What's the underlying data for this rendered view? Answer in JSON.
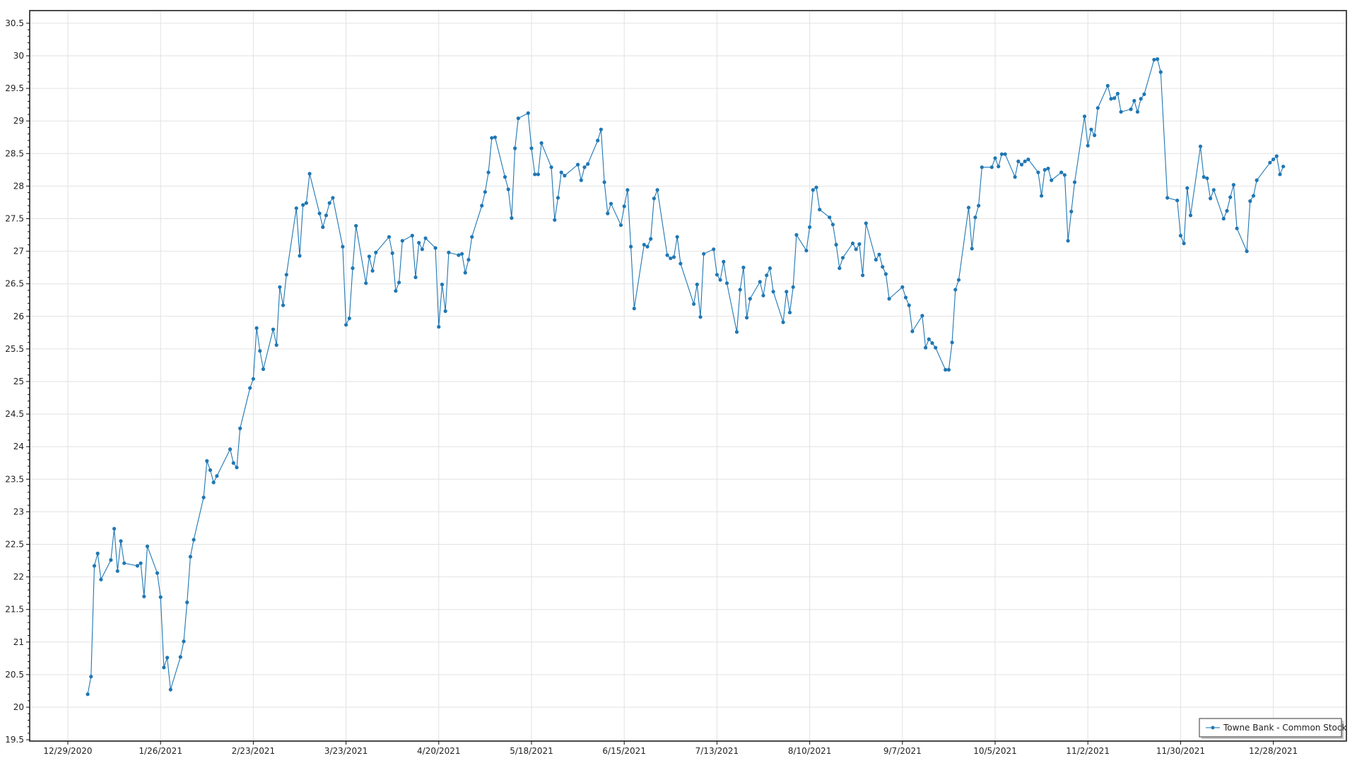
{
  "chart_data": {
    "type": "line",
    "title": "",
    "xlabel": "",
    "ylabel": "",
    "ylim": [
      19.5,
      30.5
    ],
    "y_ticks": [
      "19.5",
      "20",
      "20.5",
      "21",
      "21.5",
      "22",
      "22.5",
      "23",
      "23.5",
      "24",
      "24.5",
      "25",
      "25.5",
      "26",
      "26.5",
      "27",
      "27.5",
      "28",
      "28.5",
      "29",
      "29.5",
      "30",
      "30.5"
    ],
    "x_ticks": [
      "12/29/2020",
      "1/26/2021",
      "2/23/2021",
      "3/23/2021",
      "4/20/2021",
      "5/18/2021",
      "6/15/2021",
      "7/13/2021",
      "8/10/2021",
      "9/7/2021",
      "10/5/2021",
      "11/2/2021",
      "11/30/2021",
      "12/28/2021"
    ],
    "xlim": [
      "2020-12-22",
      "2022-01-07"
    ],
    "grid": true,
    "legend_position": "bottom-right",
    "series": [
      {
        "name": "Towne Bank - Common Stock",
        "color": "#1f77b4",
        "marker": "circle",
        "weeks": [
          {
            "start": "2021-01-04",
            "close": [
              20.2,
              20.47,
              22.17,
              22.36,
              21.96
            ]
          },
          {
            "start": "2021-01-11",
            "close": [
              22.26,
              22.74,
              22.09,
              22.55,
              22.21
            ]
          },
          {
            "start": "2021-01-18",
            "close": [
              null,
              22.17,
              22.21,
              21.7,
              22.47
            ]
          },
          {
            "start": "2021-01-25",
            "close": [
              22.06,
              21.69,
              20.61,
              20.76,
              20.27
            ]
          },
          {
            "start": "2021-02-01",
            "close": [
              20.77,
              21.01,
              21.61,
              22.31,
              22.57
            ]
          },
          {
            "start": "2021-02-08",
            "close": [
              23.22,
              23.78,
              23.64,
              23.45,
              23.55
            ]
          },
          {
            "start": "2021-02-15",
            "close": [
              null,
              23.96,
              23.75,
              23.68,
              24.28
            ]
          },
          {
            "start": "2021-02-22",
            "close": [
              24.9,
              25.04,
              25.82,
              25.47,
              25.19
            ]
          },
          {
            "start": "2021-03-01",
            "close": [
              25.8,
              25.56,
              26.45,
              26.17,
              26.64
            ]
          },
          {
            "start": "2021-03-08",
            "close": [
              27.66,
              26.93,
              27.71,
              27.74,
              28.19
            ]
          },
          {
            "start": "2021-03-15",
            "close": [
              27.58,
              27.37,
              27.55,
              27.74,
              27.82
            ]
          },
          {
            "start": "2021-03-22",
            "close": [
              27.07,
              25.87,
              25.97,
              26.74,
              27.39
            ]
          },
          {
            "start": "2021-03-29",
            "close": [
              26.51,
              26.92,
              26.7,
              26.98,
              null
            ]
          },
          {
            "start": "2021-04-05",
            "close": [
              27.22,
              26.97,
              26.39,
              26.52,
              27.16
            ]
          },
          {
            "start": "2021-04-12",
            "close": [
              27.24,
              26.6,
              27.13,
              27.03,
              27.2
            ]
          },
          {
            "start": "2021-04-19",
            "close": [
              27.05,
              25.84,
              26.49,
              26.08,
              26.98
            ]
          },
          {
            "start": "2021-04-26",
            "close": [
              26.94,
              26.96,
              26.67,
              26.87,
              27.22
            ]
          },
          {
            "start": "2021-05-03",
            "close": [
              27.7,
              27.91,
              28.21,
              28.74,
              28.75
            ]
          },
          {
            "start": "2021-05-10",
            "close": [
              28.14,
              27.95,
              27.51,
              28.58,
              29.04
            ]
          },
          {
            "start": "2021-05-17",
            "close": [
              29.12,
              28.58,
              28.18,
              28.18,
              28.66
            ]
          },
          {
            "start": "2021-05-24",
            "close": [
              28.29,
              27.48,
              27.82,
              28.21,
              28.16
            ]
          },
          {
            "start": "2021-05-31",
            "close": [
              null,
              28.33,
              28.09,
              28.29,
              28.34
            ]
          },
          {
            "start": "2021-06-07",
            "close": [
              28.7,
              28.87,
              28.06,
              27.58,
              27.73
            ]
          },
          {
            "start": "2021-06-14",
            "close": [
              27.4,
              27.69,
              27.94,
              27.07,
              26.12
            ]
          },
          {
            "start": "2021-06-21",
            "close": [
              27.1,
              27.07,
              27.19,
              27.81,
              27.94
            ]
          },
          {
            "start": "2021-06-28",
            "close": [
              26.94,
              26.89,
              26.91,
              27.22,
              26.81
            ]
          },
          {
            "start": "2021-07-05",
            "close": [
              null,
              26.19,
              26.49,
              25.99,
              26.96
            ]
          },
          {
            "start": "2021-07-12",
            "close": [
              27.03,
              26.64,
              26.56,
              26.84,
              26.51
            ]
          },
          {
            "start": "2021-07-19",
            "close": [
              25.76,
              26.41,
              26.75,
              25.98,
              26.27
            ]
          },
          {
            "start": "2021-07-26",
            "close": [
              26.53,
              26.32,
              26.63,
              26.74,
              26.38
            ]
          },
          {
            "start": "2021-08-02",
            "close": [
              25.91,
              26.38,
              26.06,
              26.45,
              27.25
            ]
          },
          {
            "start": "2021-08-09",
            "close": [
              27.01,
              27.37,
              27.94,
              27.98,
              27.64
            ]
          },
          {
            "start": "2021-08-16",
            "close": [
              27.52,
              27.41,
              27.1,
              26.74,
              26.9
            ]
          },
          {
            "start": "2021-08-23",
            "close": [
              27.12,
              27.03,
              27.11,
              26.63,
              27.43
            ]
          },
          {
            "start": "2021-08-30",
            "close": [
              26.87,
              26.95,
              26.76,
              26.65,
              26.27
            ]
          },
          {
            "start": "2021-09-06",
            "close": [
              null,
              26.45,
              26.29,
              26.17,
              25.77
            ]
          },
          {
            "start": "2021-09-13",
            "close": [
              26.01,
              25.52,
              25.65,
              25.59,
              25.52
            ]
          },
          {
            "start": "2021-09-20",
            "close": [
              25.18,
              25.18,
              25.6,
              26.41,
              26.56
            ]
          },
          {
            "start": "2021-09-27",
            "close": [
              27.67,
              27.04,
              27.52,
              27.7,
              28.29
            ]
          },
          {
            "start": "2021-10-04",
            "close": [
              28.29,
              28.43,
              28.3,
              28.49,
              28.49
            ]
          },
          {
            "start": "2021-10-11",
            "close": [
              28.14,
              28.38,
              28.33,
              28.38,
              28.41
            ]
          },
          {
            "start": "2021-10-18",
            "close": [
              28.21,
              27.85,
              28.25,
              28.27,
              28.09
            ]
          },
          {
            "start": "2021-10-25",
            "close": [
              28.21,
              28.17,
              27.16,
              27.61,
              28.06
            ]
          },
          {
            "start": "2021-11-01",
            "close": [
              29.07,
              28.62,
              28.87,
              28.78,
              29.2
            ]
          },
          {
            "start": "2021-11-08",
            "close": [
              29.54,
              29.34,
              29.35,
              29.42,
              29.14
            ]
          },
          {
            "start": "2021-11-15",
            "close": [
              29.18,
              29.31,
              29.14,
              29.34,
              29.41
            ]
          },
          {
            "start": "2021-11-22",
            "close": [
              29.94,
              29.95,
              29.75,
              null,
              27.82
            ]
          },
          {
            "start": "2021-11-29",
            "close": [
              27.78,
              27.24,
              27.12,
              27.97,
              27.55
            ]
          },
          {
            "start": "2021-12-06",
            "close": [
              28.61,
              28.14,
              28.12,
              27.81,
              27.94
            ]
          },
          {
            "start": "2021-12-13",
            "close": [
              27.5,
              27.62,
              27.83,
              28.02,
              27.35
            ]
          },
          {
            "start": "2021-12-20",
            "close": [
              27.0,
              27.77,
              27.85,
              28.09,
              null
            ]
          },
          {
            "start": "2021-12-27",
            "close": [
              28.36,
              28.41,
              28.46,
              28.18,
              28.3
            ]
          }
        ]
      }
    ]
  }
}
